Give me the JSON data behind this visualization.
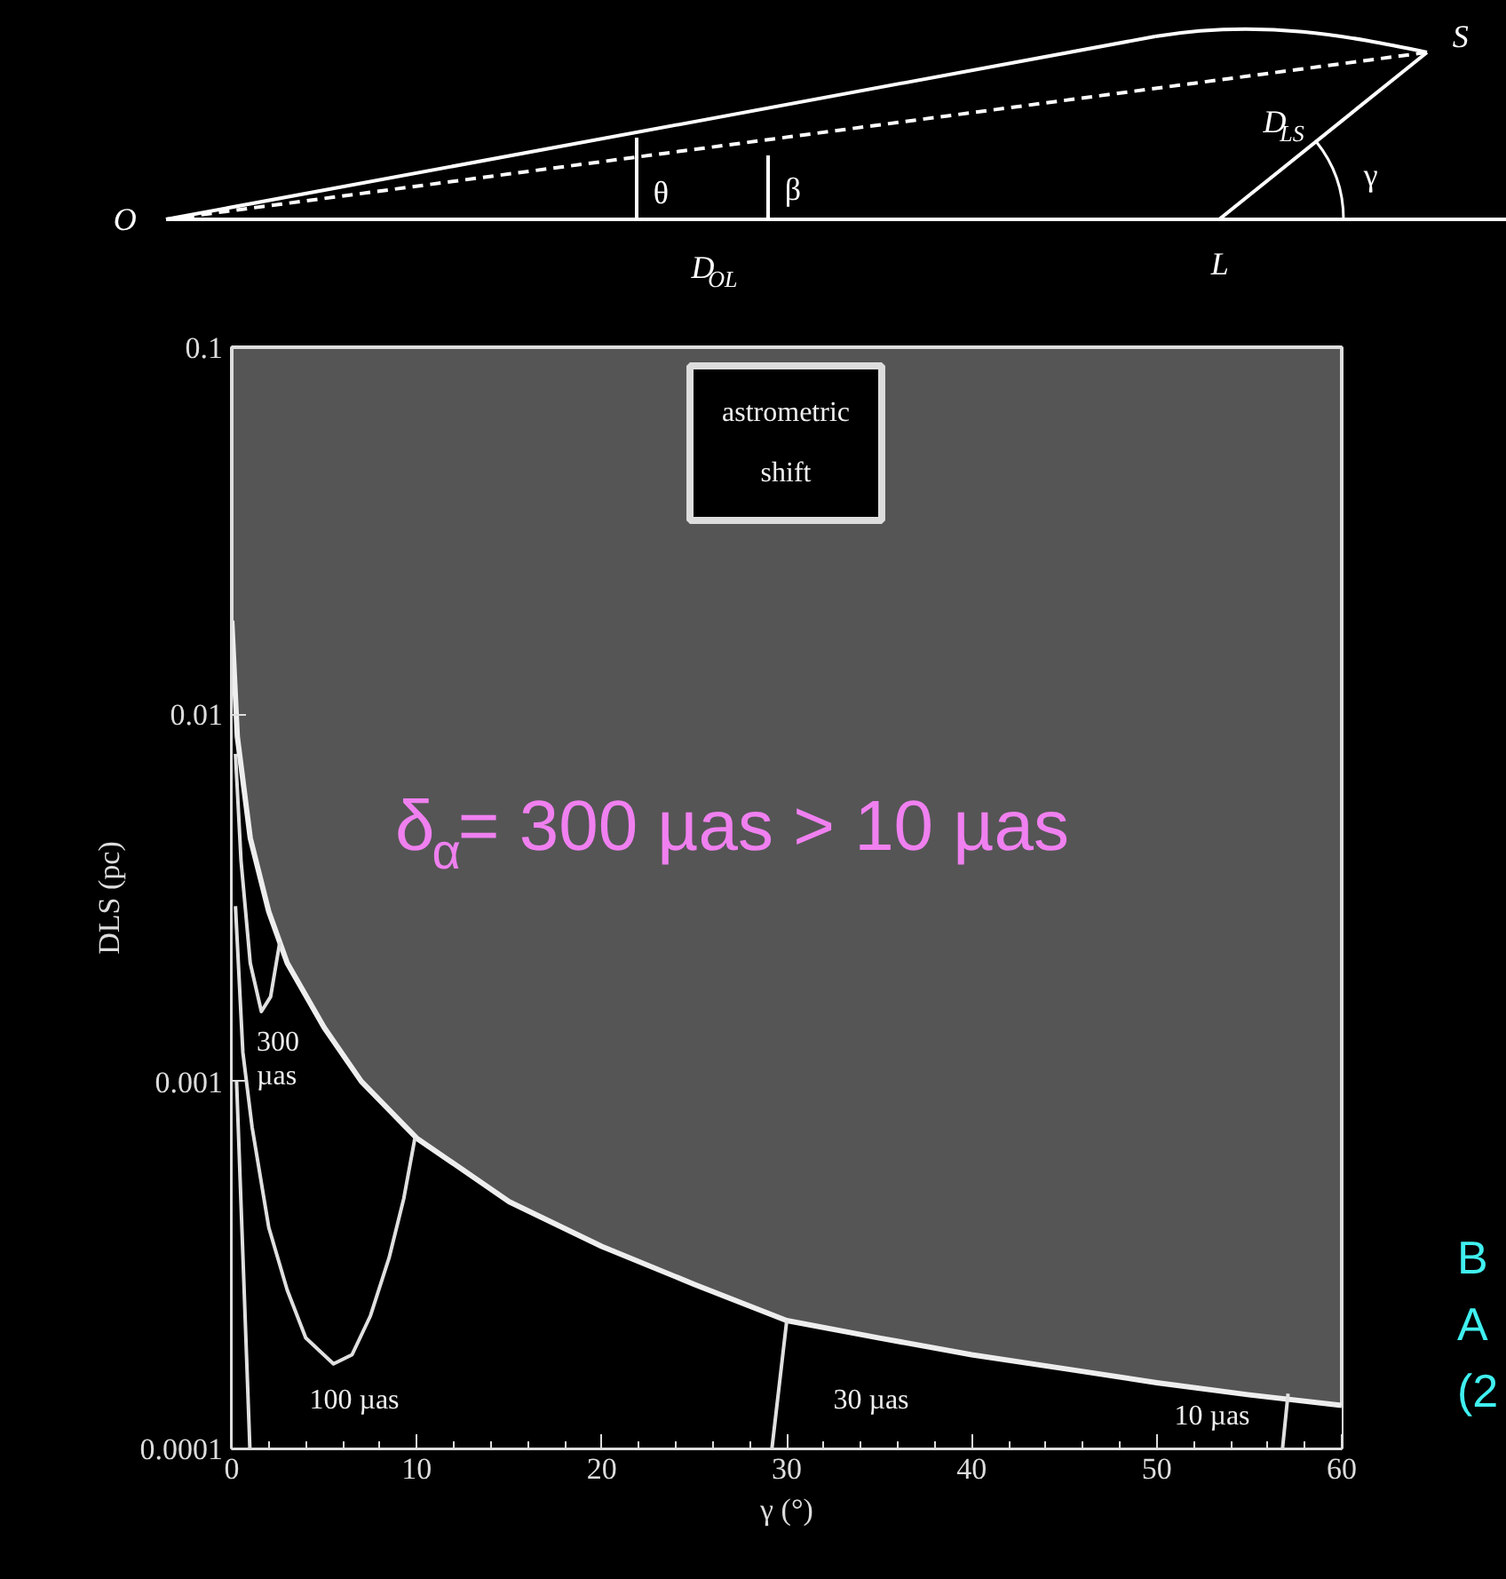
{
  "chart_data": [
    {
      "type": "other",
      "annotations": [
        "O",
        "S",
        "L",
        "θ",
        "β",
        "γ",
        "D$_{OL}$",
        "D$_{LS}$"
      ]
    },
    {
      "type": "line",
      "xlabel": "γ (°)",
      "ylabel": "DLS (pc)",
      "log": "y",
      "grid": false,
      "xlim": [
        0,
        60
      ],
      "ylim": [
        0.0001,
        0.1
      ],
      "xticks": [
        0,
        10,
        20,
        30,
        40,
        50,
        60
      ],
      "yticks": [
        0.0001,
        0.001,
        0.01,
        0.1
      ],
      "series": [
        {
          "type": "area",
          "color": "#000000",
          "x": [
            0,
            0.3,
            1,
            2,
            3,
            5,
            7,
            10,
            15,
            20,
            25,
            30,
            35,
            40,
            45,
            50,
            55,
            60
          ],
          "values": [
            0.018,
            0.0087,
            0.0046,
            0.0029,
            0.0021,
            0.0014,
            0.001,
            0.0007,
            0.00047,
            0.000355,
            0.00028,
            0.000223,
            0.0002,
            0.00018,
            0.000165,
            0.000151,
            0.00014,
            0.000131
          ]
        },
        {
          "color": "#e0e0e0",
          "x": [
            0.2,
            0.5,
            1,
            1.6,
            2.1,
            2.6
          ],
          "values": [
            0.0078,
            0.004,
            0.0021,
            0.00155,
            0.0017,
            0.0024
          ]
        },
        {
          "color": "#e0e0e0",
          "x": [
            0.2,
            0.6,
            1.1,
            2,
            3,
            4,
            5.5,
            6.5,
            7.5,
            8.5,
            9.3,
            9.9
          ],
          "values": [
            0.003,
            0.0012,
            0.00075,
            0.0004,
            0.00027,
            0.0002,
            0.00017,
            0.00018,
            0.00023,
            0.00033,
            0.00048,
            0.0007
          ]
        },
        {
          "color": "#e0e0e0",
          "x": [
            0.26,
            0.98,
            15,
            29.2,
            30.0
          ],
          "values": [
            0.001,
            0.0001,
            null,
            0.0001,
            0.000223
          ]
        },
        {
          "color": "#e0e0e0",
          "x": [
            56.8,
            57.1
          ],
          "values": [
            0.0001,
            0.000141
          ]
        }
      ],
      "annotations": [
        "300\nµas",
        "100 µas",
        "30 µas",
        "10 µas",
        "astrometric\nshift",
        "δ$_{α}$= 300 µas > 10 µas",
        "B\nA\n(2"
      ]
    }
  ]
}
